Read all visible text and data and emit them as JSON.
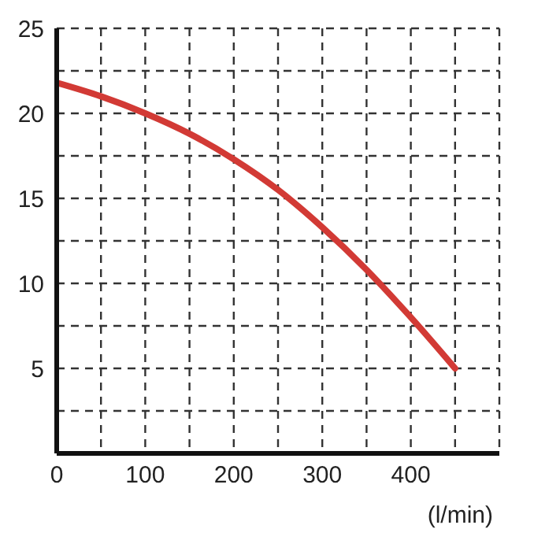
{
  "chart_data": {
    "type": "line",
    "xlabel": "(l/min)",
    "x": [
      0,
      50,
      100,
      150,
      200,
      250,
      300,
      350,
      400,
      450
    ],
    "series": [
      {
        "color": "#d23a35",
        "values": [
          21.8,
          21,
          20,
          18.8,
          17.3,
          15.5,
          13.3,
          10.8,
          8,
          5
        ]
      }
    ],
    "xlim": [
      0,
      500
    ],
    "xticks": [
      0,
      {
        "value": 50,
        "label": null
      },
      100,
      {
        "value": 150,
        "label": null
      },
      200,
      {
        "value": 250,
        "label": null
      },
      300,
      {
        "value": 350,
        "label": null
      },
      400,
      {
        "value": 450,
        "label": null
      }
    ],
    "ylim": [
      0,
      25
    ],
    "yticks": [
      {
        "value": 2.5,
        "label": null
      },
      5,
      {
        "value": 7.5,
        "label": null
      },
      10,
      {
        "value": 12.5,
        "label": null
      },
      15,
      {
        "value": 17.5,
        "label": null
      },
      20,
      {
        "value": 22.5,
        "label": null
      },
      25
    ],
    "grid": true,
    "legend": false,
    "marker": "none",
    "line_style": "solid"
  }
}
